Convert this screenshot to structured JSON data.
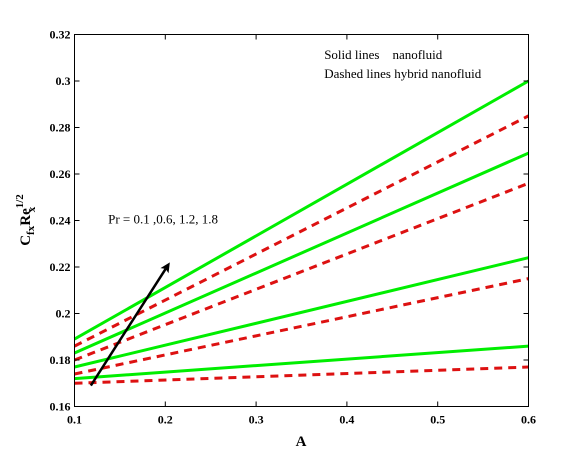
{
  "chart_data": {
    "type": "line",
    "xlabel": "A",
    "ylabel": {
      "main": "C",
      "sub1": "fx",
      "mid": "Re",
      "sup": "1/2",
      "sub2": "x"
    },
    "xlim": [
      0.1,
      0.6
    ],
    "ylim": [
      0.16,
      0.32
    ],
    "xticks": [
      0.1,
      0.2,
      0.3,
      0.4,
      0.5,
      0.6
    ],
    "yticks": [
      0.16,
      0.18,
      0.2,
      0.22,
      0.24,
      0.26,
      0.28,
      0.3,
      0.32
    ],
    "xtick_labels": [
      "0.1",
      "0.2",
      "0.3",
      "0.4",
      "0.5",
      "0.6"
    ],
    "ytick_labels": [
      "0.16",
      "0.18",
      "0.2",
      "0.22",
      "0.24",
      "0.26",
      "0.28",
      "0.3",
      "0.32"
    ],
    "colors": {
      "solid": "#00ee00",
      "dashed": "#dd1111",
      "arrow": "#000000"
    },
    "series": [
      {
        "style": "solid",
        "x": [
          0.1,
          0.6
        ],
        "y": [
          0.172,
          0.186
        ]
      },
      {
        "style": "dashed",
        "x": [
          0.1,
          0.6
        ],
        "y": [
          0.17,
          0.177
        ]
      },
      {
        "style": "solid",
        "x": [
          0.1,
          0.6
        ],
        "y": [
          0.177,
          0.224
        ]
      },
      {
        "style": "dashed",
        "x": [
          0.1,
          0.6
        ],
        "y": [
          0.174,
          0.215
        ]
      },
      {
        "style": "solid",
        "x": [
          0.1,
          0.6
        ],
        "y": [
          0.183,
          0.269
        ]
      },
      {
        "style": "dashed",
        "x": [
          0.1,
          0.6
        ],
        "y": [
          0.18,
          0.256
        ]
      },
      {
        "style": "solid",
        "x": [
          0.1,
          0.6
        ],
        "y": [
          0.189,
          0.3
        ]
      },
      {
        "style": "dashed",
        "x": [
          0.1,
          0.6
        ],
        "y": [
          0.186,
          0.285
        ]
      }
    ],
    "arrow": {
      "x1": 0.118,
      "y1": 0.169,
      "x2": 0.205,
      "y2": 0.222
    },
    "annotations": {
      "pr_text": "Pr = 0.1 ,0.6, 1.2, 1.8",
      "pr_at": {
        "x": 0.137,
        "y": 0.2388
      },
      "legend_line1": "Solid lines    nanofluid",
      "legend_line2": "Dashed lines hybrid nanofluid",
      "legend_at": {
        "x": 0.375,
        "y": 0.3095
      }
    }
  }
}
